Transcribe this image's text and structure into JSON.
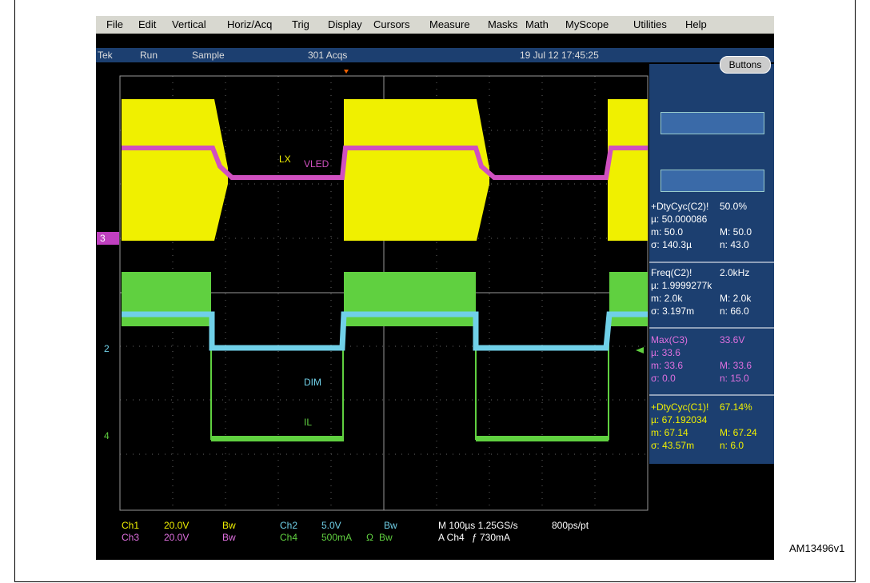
{
  "menu": [
    "File",
    "Edit",
    "Vertical",
    "Horiz/Acq",
    "Trig",
    "Display",
    "Cursors",
    "Measure",
    "Masks",
    "Math",
    "MyScope",
    "Utilities",
    "Help"
  ],
  "status": {
    "brand": "Tek",
    "state": "Run",
    "mode": "Sample",
    "acqs": "301 Acqs",
    "datetime": "19 Jul 12 17:45:25"
  },
  "buttons": "Buttons",
  "trace_labels": {
    "lx": "LX",
    "vled": "VLED",
    "dim": "DIM",
    "il": "IL"
  },
  "channel_markers": [
    "3",
    "2",
    "4"
  ],
  "measurements": [
    {
      "title": "+DtyCyc(C2)!",
      "value": "50.0%",
      "mean": "µ: 50.000086",
      "min": "m: 50.0",
      "max": "M: 50.0",
      "sigma": "σ: 140.3µ",
      "n": "n: 43.0"
    },
    {
      "title": "Freq(C2)!",
      "value": "2.0kHz",
      "mean": "µ: 1.9999277k",
      "min": "m: 2.0k",
      "max": "M: 2.0k",
      "sigma": "σ: 3.197m",
      "n": "n: 66.0"
    },
    {
      "title": "Max(C3)",
      "value": "33.6V",
      "mean": "µ: 33.6",
      "min": "m: 33.6",
      "max": "M: 33.6",
      "sigma": "σ: 0.0",
      "n": "n: 15.0"
    },
    {
      "title": "+DtyCyc(C1)!",
      "value": "67.14%",
      "mean": "µ: 67.192034",
      "min": "m: 67.14",
      "max": "M: 67.24",
      "sigma": "σ: 43.57m",
      "n": "n: 6.0"
    }
  ],
  "settings": {
    "row1": [
      "Ch1",
      "20.0V",
      "Bw",
      "Ch2",
      "5.0V",
      "Bw",
      "M 100µs 1.25GS/s",
      "800ps/pt"
    ],
    "row2": [
      "Ch3",
      "20.0V",
      "Bw",
      "Ch4",
      "500mA",
      "Ω",
      "Bw",
      "A Ch4",
      "ƒ 730mA"
    ]
  },
  "figure_id": "AM13496v1"
}
